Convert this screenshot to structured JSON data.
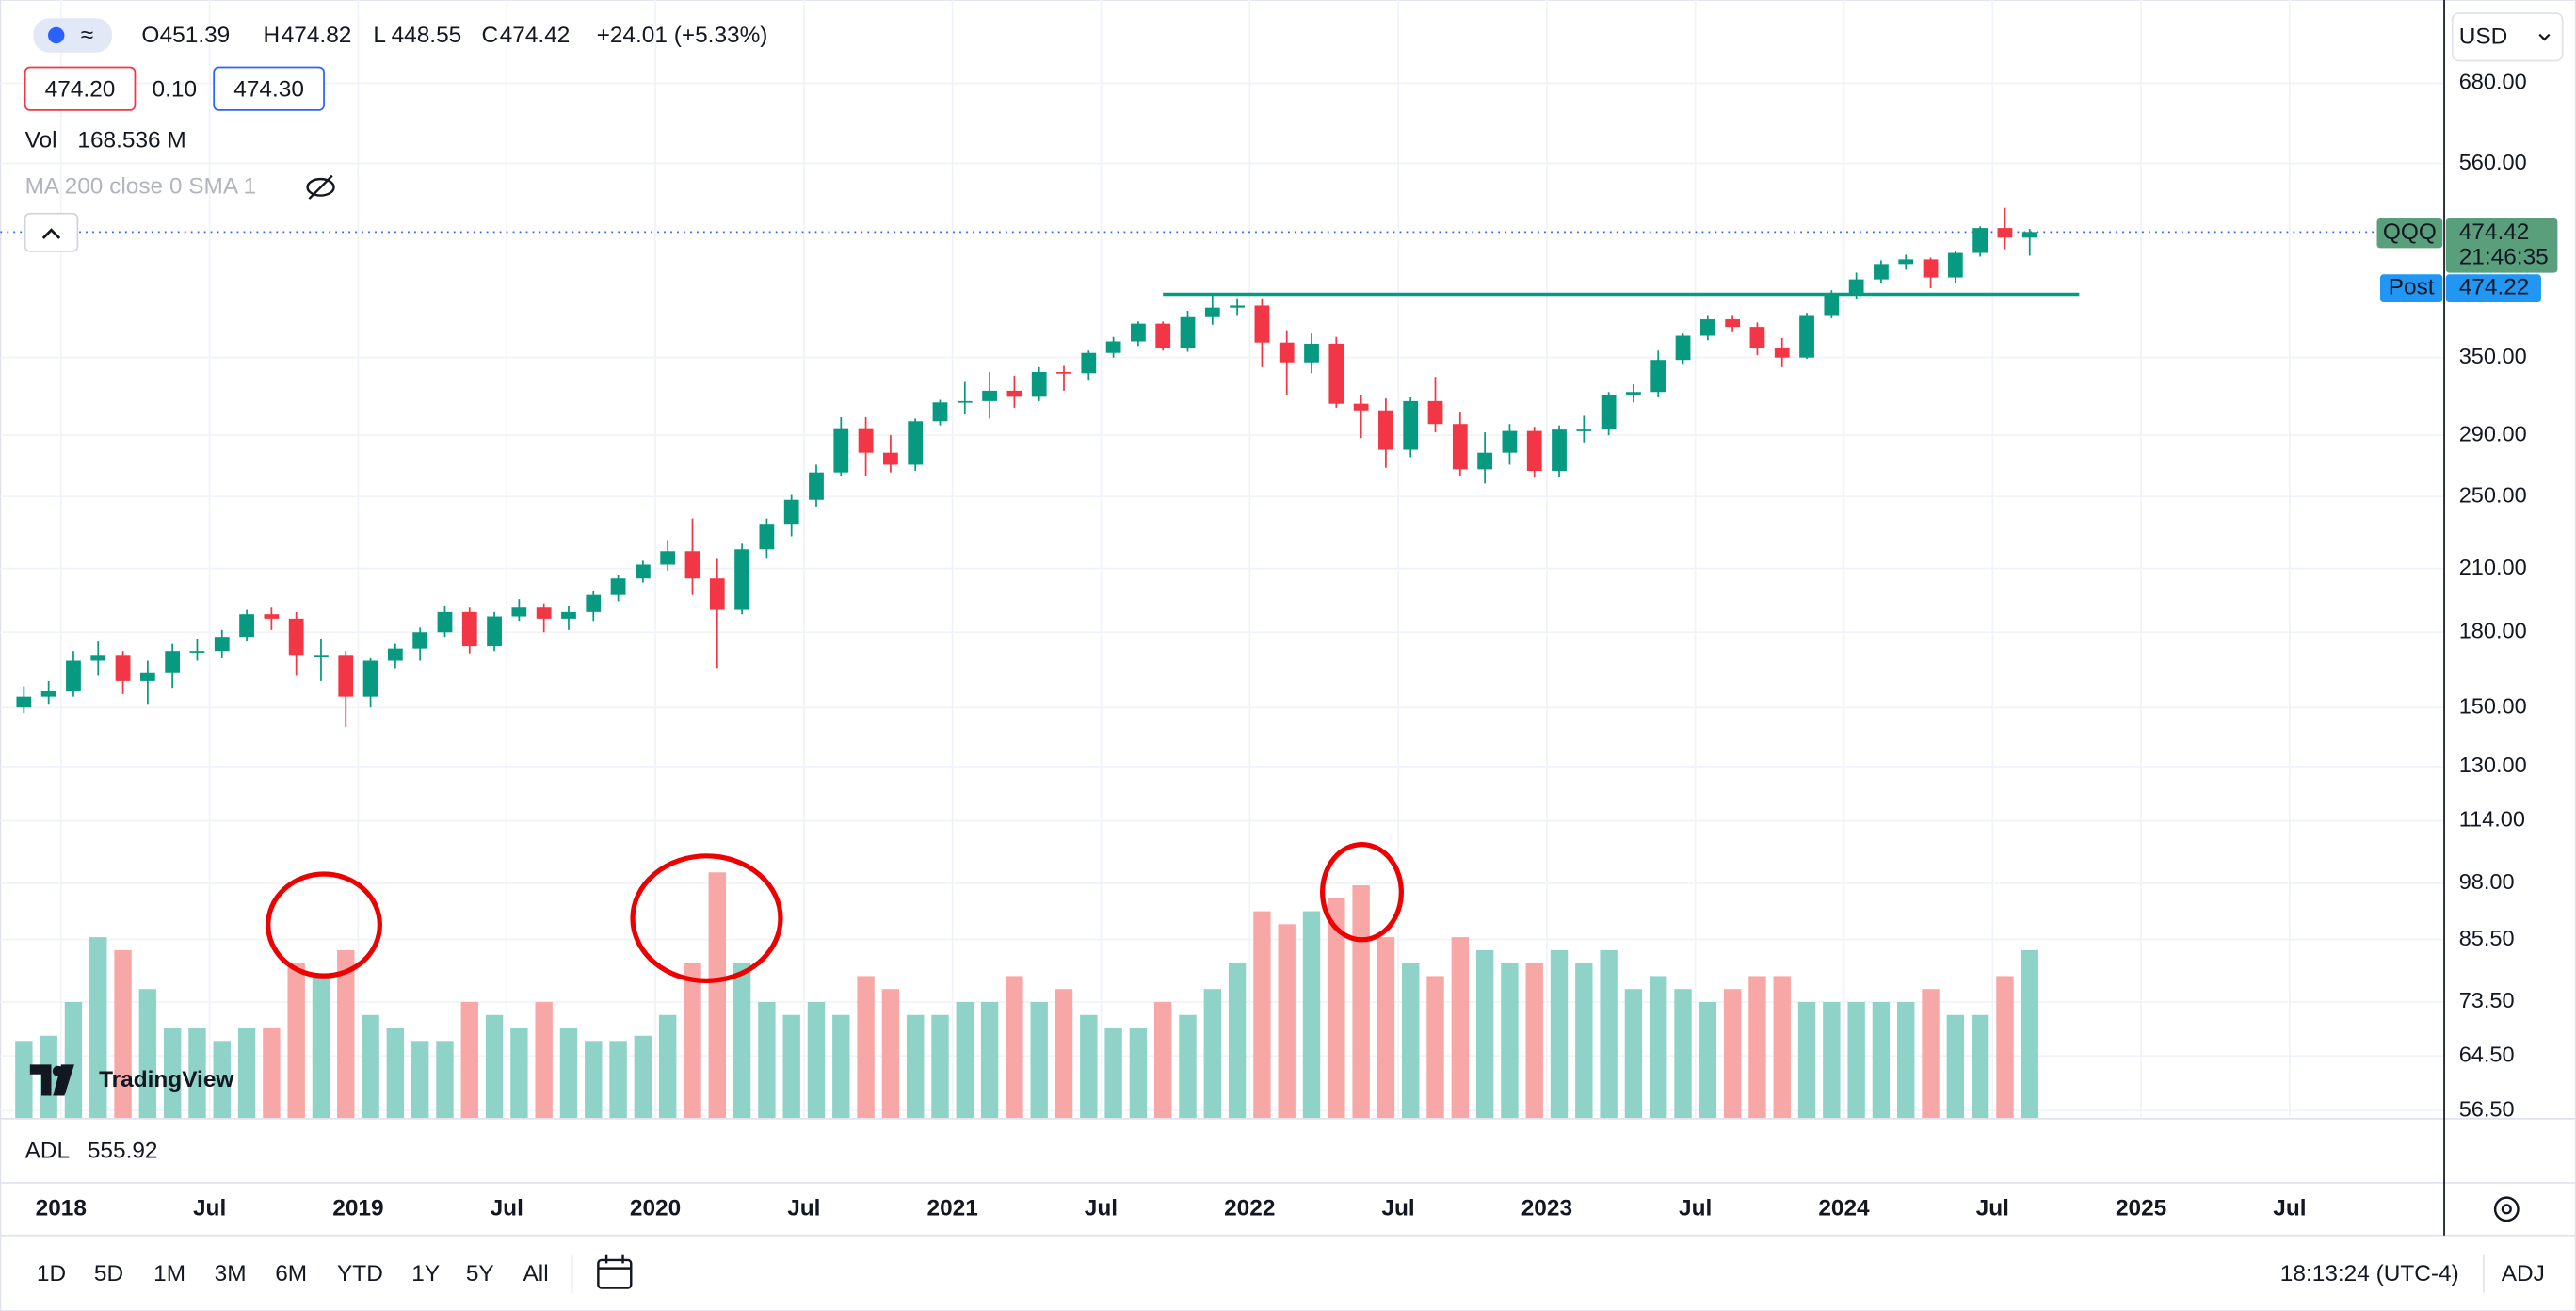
{
  "header": {
    "ohlc": [
      {
        "label": "O",
        "value": "451.39"
      },
      {
        "label": "H",
        "value": "474.82"
      },
      {
        "label": "L",
        "value": "448.55"
      },
      {
        "label": "C",
        "value": "474.42"
      }
    ],
    "change": "+24.01 (+5.33%)",
    "bid": "474.20",
    "spread": "0.10",
    "ask": "474.30",
    "vol_label": "Vol",
    "vol_value": "168.536 M",
    "ma_label": "MA 200 close 0 SMA 1",
    "currency": "USD"
  },
  "price_tags": {
    "symbol": "QQQ",
    "price": "474.42",
    "countdown": "21:46:35",
    "post_label": "Post",
    "post_price": "474.22"
  },
  "adl": {
    "label": "ADL",
    "value": "555.92"
  },
  "logo": "TradingView",
  "toolbar": {
    "ranges": [
      "1D",
      "5D",
      "1M",
      "3M",
      "6M",
      "YTD",
      "1Y",
      "5Y",
      "All"
    ],
    "clock": "18:13:24 (UTC-4)",
    "adj": "ADJ"
  },
  "chart_data": {
    "type": "candlestick",
    "log_scale": true,
    "grid": true,
    "x": [
      "2017-11",
      "2017-12",
      "2018-01",
      "2018-02",
      "2018-03",
      "2018-04",
      "2018-05",
      "2018-06",
      "2018-07",
      "2018-08",
      "2018-09",
      "2018-10",
      "2018-11",
      "2018-12",
      "2019-01",
      "2019-02",
      "2019-03",
      "2019-04",
      "2019-05",
      "2019-06",
      "2019-07",
      "2019-08",
      "2019-09",
      "2019-10",
      "2019-11",
      "2019-12",
      "2020-01",
      "2020-02",
      "2020-03",
      "2020-04",
      "2020-05",
      "2020-06",
      "2020-07",
      "2020-08",
      "2020-09",
      "2020-10",
      "2020-11",
      "2020-12",
      "2021-01",
      "2021-02",
      "2021-03",
      "2021-04",
      "2021-05",
      "2021-06",
      "2021-07",
      "2021-08",
      "2021-09",
      "2021-10",
      "2021-11",
      "2021-12",
      "2022-01",
      "2022-02",
      "2022-03",
      "2022-04",
      "2022-05",
      "2022-06",
      "2022-07",
      "2022-08",
      "2022-09",
      "2022-10",
      "2022-11",
      "2022-12",
      "2023-01",
      "2023-02",
      "2023-03",
      "2023-04",
      "2023-05",
      "2023-06",
      "2023-07",
      "2023-08",
      "2023-09",
      "2023-10",
      "2023-11",
      "2023-12",
      "2024-01",
      "2024-02",
      "2024-03",
      "2024-04",
      "2024-05",
      "2024-06",
      "2024-07",
      "2024-08"
    ],
    "open": [
      150,
      154,
      156,
      168,
      170,
      160,
      163,
      172,
      172,
      178,
      188,
      186,
      170,
      170,
      154,
      168,
      173,
      180,
      189,
      174,
      187,
      191,
      186,
      189,
      197,
      205,
      212,
      219,
      205,
      190,
      220,
      234,
      248,
      265,
      295,
      278,
      270,
      300,
      314,
      315,
      323,
      319,
      338,
      337,
      354,
      364,
      380,
      358,
      386,
      395,
      397,
      363,
      346,
      362,
      313,
      308,
      280,
      315,
      298,
      267,
      278,
      293,
      266,
      294,
      294,
      320,
      322,
      348,
      369,
      384,
      377,
      358,
      350,
      388,
      409,
      423,
      439,
      444,
      425,
      451,
      479,
      468
    ],
    "high": [
      158,
      160,
      172,
      176,
      172,
      168,
      175,
      177,
      181,
      190,
      191,
      189,
      177,
      172,
      169,
      175,
      182,
      192,
      191,
      189,
      195,
      193,
      192,
      199,
      207,
      214,
      225,
      237,
      215,
      223,
      237,
      251,
      270,
      303,
      303,
      290,
      302,
      316,
      330,
      338,
      335,
      342,
      343,
      356,
      368,
      382,
      382,
      392,
      408,
      404,
      404,
      374,
      371,
      368,
      320,
      317,
      318,
      334,
      307,
      292,
      298,
      296,
      297,
      304,
      322,
      328,
      356,
      371,
      388,
      388,
      381,
      367,
      390,
      412,
      430,
      443,
      449,
      446,
      453,
      481,
      503,
      478
    ],
    "low": [
      148,
      151,
      154,
      162,
      155,
      151,
      157,
      168,
      169,
      176,
      181,
      162,
      160,
      143,
      150,
      165,
      168,
      178,
      171,
      172,
      185,
      180,
      181,
      185,
      194,
      203,
      209,
      197,
      165,
      188,
      215,
      227,
      244,
      263,
      263,
      265,
      266,
      297,
      305,
      302,
      310,
      315,
      323,
      331,
      350,
      360,
      356,
      355,
      379,
      388,
      342,
      320,
      337,
      310,
      288,
      268,
      275,
      292,
      263,
      258,
      270,
      262,
      262,
      285,
      290,
      314,
      318,
      344,
      365,
      373,
      352,
      342,
      349,
      385,
      403,
      419,
      433,
      414,
      419,
      447,
      455,
      448
    ],
    "close": [
      154,
      156,
      168,
      170,
      160,
      163,
      172,
      172,
      178,
      188,
      186,
      170,
      170,
      154,
      168,
      173,
      180,
      189,
      174,
      187,
      191,
      186,
      189,
      197,
      205,
      212,
      219,
      205,
      190,
      220,
      234,
      248,
      265,
      295,
      278,
      270,
      300,
      314,
      315,
      323,
      319,
      338,
      337,
      354,
      364,
      380,
      358,
      386,
      395,
      397,
      363,
      346,
      362,
      313,
      308,
      280,
      315,
      298,
      267,
      278,
      293,
      266,
      294,
      294,
      320,
      322,
      348,
      369,
      384,
      377,
      358,
      350,
      388,
      409,
      423,
      439,
      444,
      425,
      451,
      479,
      468,
      474.42
    ],
    "volume": [
      30,
      32,
      45,
      70,
      65,
      50,
      35,
      35,
      30,
      35,
      35,
      60,
      55,
      65,
      40,
      35,
      30,
      30,
      45,
      40,
      35,
      45,
      35,
      30,
      30,
      32,
      40,
      60,
      95,
      60,
      45,
      40,
      45,
      40,
      55,
      50,
      40,
      40,
      45,
      45,
      55,
      45,
      50,
      40,
      35,
      35,
      45,
      40,
      50,
      60,
      80,
      75,
      80,
      85,
      90,
      70,
      60,
      55,
      70,
      65,
      60,
      60,
      65,
      60,
      65,
      50,
      55,
      50,
      45,
      50,
      55,
      55,
      45,
      45,
      45,
      45,
      45,
      50,
      40,
      40,
      55,
      65
    ],
    "up_color": "#089981",
    "down_color": "#f23645",
    "volume_up_color": "#8fd3c8",
    "volume_down_color": "#f7a8a6",
    "level_line": {
      "value": 408,
      "start": "2021-09",
      "end": "2024-10",
      "color": "#089981"
    },
    "ylim": [
      55.4,
      806
    ],
    "yticks": [
      {
        "value": 680,
        "label": "680.00"
      },
      {
        "value": 560,
        "label": "560.00"
      },
      {
        "value": 350,
        "label": "350.00"
      },
      {
        "value": 290,
        "label": "290.00"
      },
      {
        "value": 250,
        "label": "250.00"
      },
      {
        "value": 210,
        "label": "210.00"
      },
      {
        "value": 180,
        "label": "180.00"
      },
      {
        "value": 150,
        "label": "150.00"
      },
      {
        "value": 130,
        "label": "130.00"
      },
      {
        "value": 114,
        "label": "114.00"
      },
      {
        "value": 98,
        "label": "98.00"
      },
      {
        "value": 85.5,
        "label": "85.50"
      },
      {
        "value": 73.5,
        "label": "73.50"
      },
      {
        "value": 64.5,
        "label": "64.50"
      },
      {
        "value": 56.5,
        "label": "56.50"
      }
    ],
    "xlim": [
      2017.796,
      2026.02
    ],
    "xticks": [
      2018,
      {
        "value": 2018.5,
        "label": "Jul"
      },
      2019,
      {
        "value": 2019.5,
        "label": "Jul"
      },
      2020,
      {
        "value": 2020.5,
        "label": "Jul"
      },
      2021,
      {
        "value": 2021.5,
        "label": "Jul"
      },
      2022,
      {
        "value": 2022.5,
        "label": "Jul"
      },
      2023,
      {
        "value": 2023.5,
        "label": "Jul"
      },
      2024,
      {
        "value": 2024.5,
        "label": "Jul"
      },
      2025,
      {
        "value": 2025.5,
        "label": "Jul"
      }
    ]
  }
}
